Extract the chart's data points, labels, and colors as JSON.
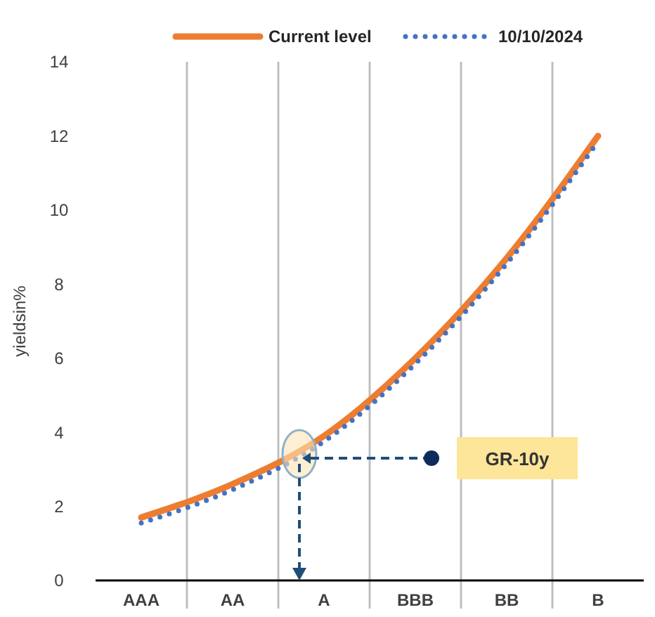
{
  "chart_data": {
    "type": "line",
    "ylabel": "yieldsin%",
    "categories": [
      "AAA",
      "AA",
      "A",
      "BBB",
      "BB",
      "B"
    ],
    "series": [
      {
        "name": "Current level",
        "color": "#ed7d31",
        "line_style": "solid",
        "values": [
          1.7,
          2.6,
          3.9,
          6.0,
          8.7,
          12.0
        ]
      },
      {
        "name": "10/10/2024",
        "color": "#4472c4",
        "line_style": "dotted",
        "values": [
          1.55,
          2.45,
          3.75,
          5.85,
          8.55,
          11.85
        ]
      }
    ],
    "ylim": [
      0,
      14
    ],
    "yticks": [
      0,
      2,
      4,
      6,
      8,
      10,
      12,
      14
    ],
    "grid": "x",
    "legend": "top",
    "annotations": [
      "GR-10y"
    ]
  }
}
